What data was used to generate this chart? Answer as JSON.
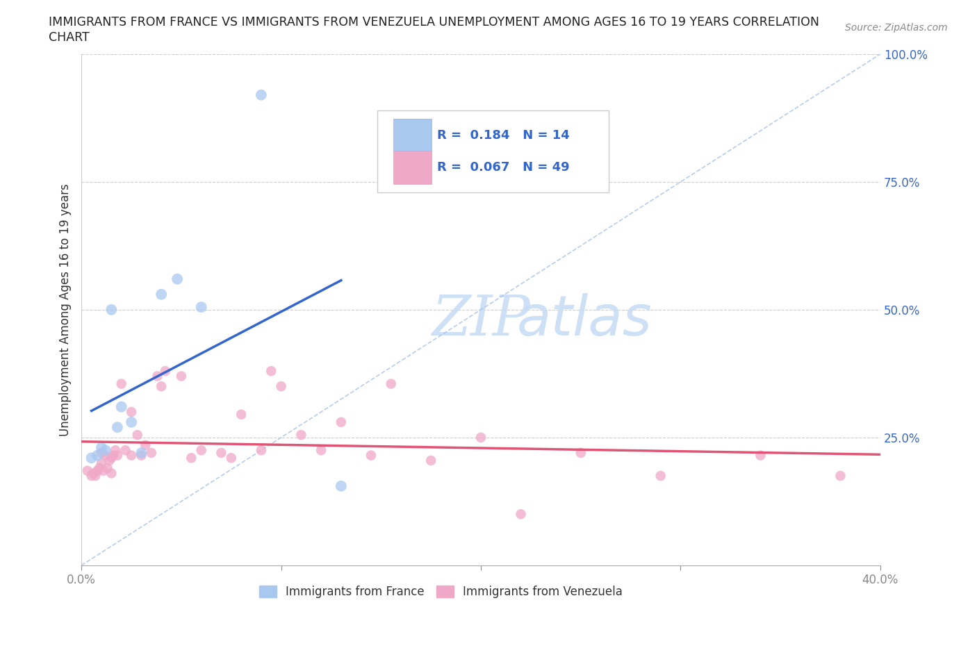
{
  "title_line1": "IMMIGRANTS FROM FRANCE VS IMMIGRANTS FROM VENEZUELA UNEMPLOYMENT AMONG AGES 16 TO 19 YEARS CORRELATION",
  "title_line2": "CHART",
  "source": "Source: ZipAtlas.com",
  "ylabel": "Unemployment Among Ages 16 to 19 years",
  "xlim": [
    0.0,
    0.4
  ],
  "ylim": [
    0.0,
    1.0
  ],
  "xtick_positions": [
    0.0,
    0.1,
    0.2,
    0.3,
    0.4
  ],
  "ytick_positions": [
    0.0,
    0.25,
    0.5,
    0.75,
    1.0
  ],
  "yticklabels": [
    "",
    "25.0%",
    "50.0%",
    "75.0%",
    "100.0%"
  ],
  "france_color": "#a8c8f0",
  "venezuela_color": "#f0a8c8",
  "france_line_color": "#3366cc",
  "venezuela_line_color": "#e05575",
  "legend_text_color": "#3366cc",
  "france_R": 0.184,
  "france_N": 14,
  "venezuela_R": 0.067,
  "venezuela_N": 49,
  "watermark_color": "#c8ddf5",
  "grid_color": "#cccccc",
  "diagonal_color": "#aac4e8",
  "france_x": [
    0.005,
    0.008,
    0.01,
    0.012,
    0.015,
    0.018,
    0.02,
    0.025,
    0.03,
    0.04,
    0.048,
    0.06,
    0.09,
    0.13
  ],
  "france_y": [
    0.21,
    0.215,
    0.23,
    0.225,
    0.5,
    0.27,
    0.31,
    0.28,
    0.22,
    0.53,
    0.56,
    0.505,
    0.92,
    0.155
  ],
  "venezuela_x": [
    0.003,
    0.005,
    0.006,
    0.007,
    0.008,
    0.009,
    0.01,
    0.01,
    0.011,
    0.012,
    0.013,
    0.014,
    0.015,
    0.015,
    0.016,
    0.017,
    0.018,
    0.02,
    0.022,
    0.025,
    0.025,
    0.028,
    0.03,
    0.032,
    0.035,
    0.038,
    0.04,
    0.042,
    0.05,
    0.055,
    0.06,
    0.07,
    0.075,
    0.08,
    0.09,
    0.095,
    0.1,
    0.11,
    0.12,
    0.13,
    0.145,
    0.155,
    0.175,
    0.2,
    0.22,
    0.25,
    0.29,
    0.34,
    0.38
  ],
  "venezuela_y": [
    0.185,
    0.175,
    0.18,
    0.175,
    0.185,
    0.19,
    0.2,
    0.22,
    0.185,
    0.215,
    0.19,
    0.205,
    0.18,
    0.21,
    0.215,
    0.225,
    0.215,
    0.355,
    0.225,
    0.215,
    0.3,
    0.255,
    0.215,
    0.235,
    0.22,
    0.37,
    0.35,
    0.38,
    0.37,
    0.21,
    0.225,
    0.22,
    0.21,
    0.295,
    0.225,
    0.38,
    0.35,
    0.255,
    0.225,
    0.28,
    0.215,
    0.355,
    0.205,
    0.25,
    0.1,
    0.22,
    0.175,
    0.215,
    0.175
  ]
}
